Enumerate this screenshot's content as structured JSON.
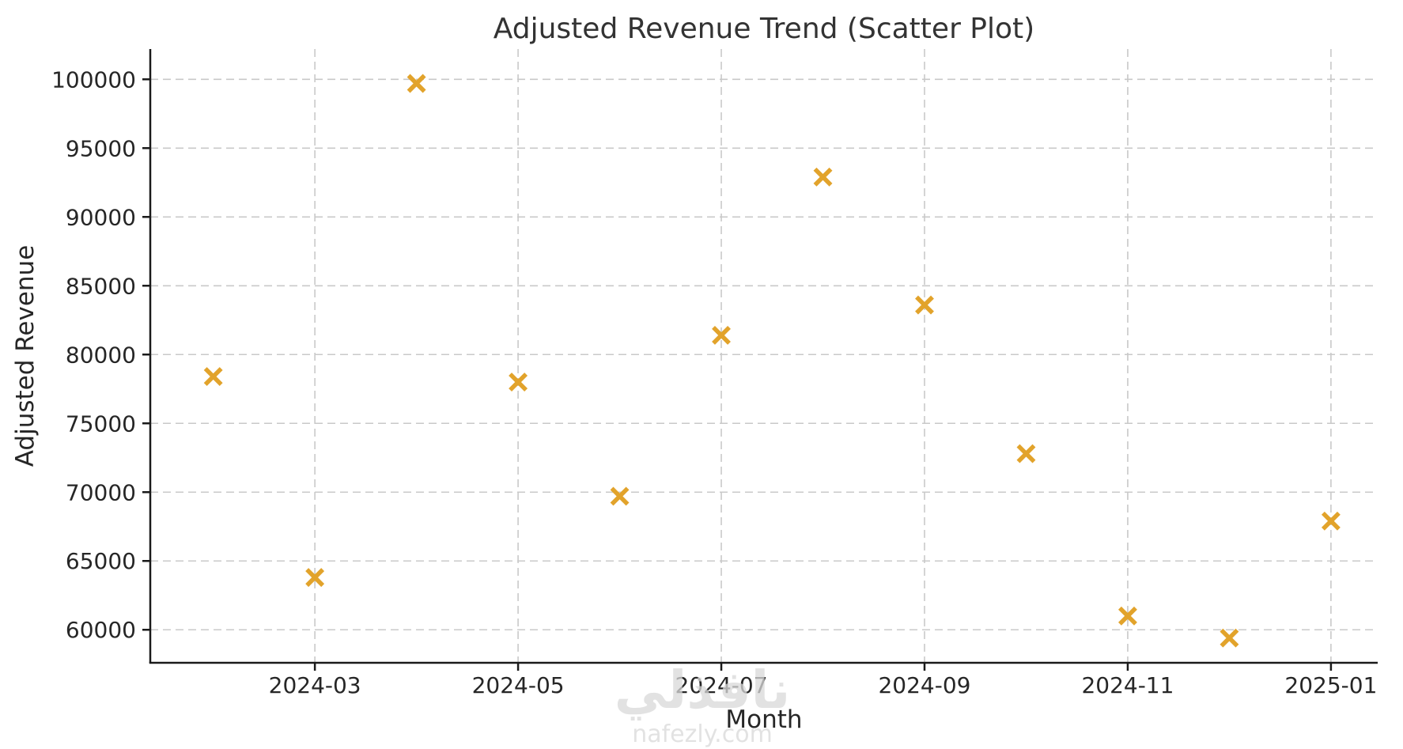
{
  "chart_data": {
    "type": "scatter",
    "title": "Adjusted Revenue Trend (Scatter Plot)",
    "xlabel": "Month",
    "ylabel": "Adjusted Revenue",
    "points": [
      {
        "month": "2024-02",
        "value": 78400
      },
      {
        "month": "2024-03",
        "value": 63800
      },
      {
        "month": "2024-04",
        "value": 99700
      },
      {
        "month": "2024-05",
        "value": 78000
      },
      {
        "month": "2024-06",
        "value": 69700
      },
      {
        "month": "2024-07",
        "value": 81400
      },
      {
        "month": "2024-08",
        "value": 92900
      },
      {
        "month": "2024-09",
        "value": 83600
      },
      {
        "month": "2024-10",
        "value": 72800
      },
      {
        "month": "2024-11",
        "value": 61000
      },
      {
        "month": "2024-12",
        "value": 59400
      },
      {
        "month": "2025-01",
        "value": 67900
      }
    ],
    "x_tick_labels": [
      "2024-03",
      "2024-05",
      "2024-07",
      "2024-09",
      "2024-11",
      "2025-01"
    ],
    "y_tick_values": [
      60000,
      65000,
      70000,
      75000,
      80000,
      85000,
      90000,
      95000,
      100000
    ],
    "ylim": [
      57600,
      102200
    ],
    "marker": "x",
    "marker_color": "#E2A32B",
    "grid": true,
    "grid_style": "dashed",
    "grid_color": "#c9c9c9",
    "legend": null
  },
  "watermark": {
    "logo_text": "نافذلي",
    "site_text": "nafezly.com"
  }
}
